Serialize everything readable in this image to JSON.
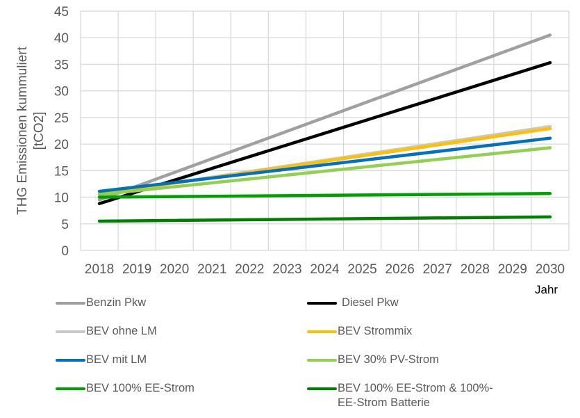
{
  "chart_data": {
    "type": "line",
    "title": "",
    "xlabel": "Jahr",
    "ylabel": "THG Emissionen kummuliert [tCO2]",
    "ylabel_lines": [
      "THG Emissionen kummuliert",
      "[tCO2]"
    ],
    "x": [
      "2018",
      "2019",
      "2020",
      "2021",
      "2022",
      "2023",
      "2024",
      "2025",
      "2026",
      "2027",
      "2028",
      "2029",
      "2030"
    ],
    "ylim": [
      0,
      45
    ],
    "yticks": [
      0,
      5,
      10,
      15,
      20,
      25,
      30,
      35,
      40,
      45
    ],
    "grid": true,
    "legend_position": "bottom",
    "series": [
      {
        "name": "Benzin Pkw",
        "color": "#a0a0a0",
        "start": 9.5,
        "end": 40.5
      },
      {
        "name": "Diesel Pkw",
        "color": "#000000",
        "start": 8.8,
        "end": 35.3
      },
      {
        "name": "BEV ohne LM",
        "color": "#c8c8c8",
        "start": 10.6,
        "end": 23.3
      },
      {
        "name": "BEV Strommix",
        "color": "#ffc000",
        "start": 10.6,
        "end": 22.9
      },
      {
        "name": "BEV mit LM",
        "color": "#0070c0",
        "start": 11.1,
        "end": 21.1
      },
      {
        "name": "BEV 30% PV-Strom",
        "color": "#92d050",
        "start": 10.5,
        "end": 19.3
      },
      {
        "name": "BEV 100% EE-Strom",
        "color": "#00a000",
        "start": 10.0,
        "end": 10.7
      },
      {
        "name": "BEV 100% EE-Strom & 100%-EE-Strom Batterie",
        "color": "#008000",
        "start": 5.5,
        "end": 6.3
      }
    ]
  },
  "legend": [
    {
      "lines": [
        "Benzin Pkw"
      ]
    },
    {
      "lines": [
        "Diesel Pkw"
      ]
    },
    {
      "lines": [
        "BEV ohne LM"
      ]
    },
    {
      "lines": [
        "BEV Strommix"
      ]
    },
    {
      "lines": [
        "BEV mit LM"
      ]
    },
    {
      "lines": [
        "BEV 30% PV-Strom"
      ]
    },
    {
      "lines": [
        "BEV 100% EE-Strom"
      ]
    },
    {
      "lines": [
        "BEV 100% EE-Strom & 100%-",
        "EE-Strom Batterie"
      ]
    }
  ]
}
